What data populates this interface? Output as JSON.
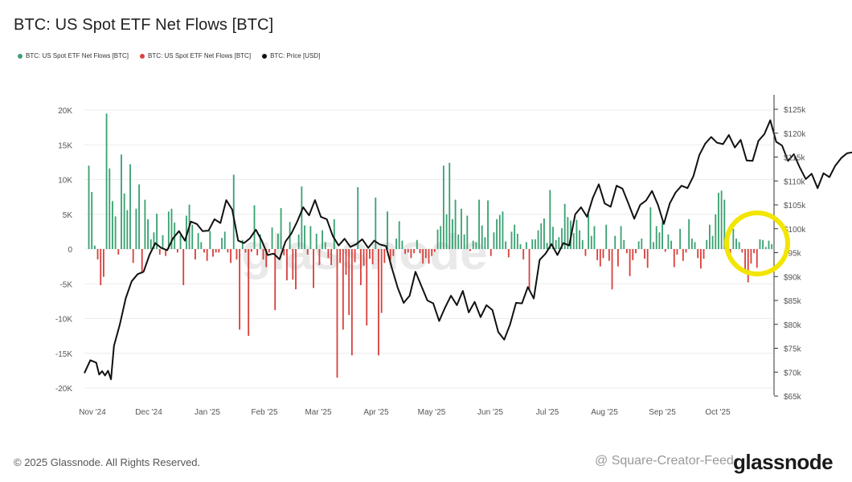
{
  "title": "BTC: US Spot ETF Net Flows [BTC]",
  "legend": [
    {
      "label": "BTC: US Spot ETF Net Flows [BTC]",
      "color": "#3ba272"
    },
    {
      "label": "BTC: US Spot ETF Net Flows [BTC]",
      "color": "#d9423e"
    },
    {
      "label": "BTC: Price [USD]",
      "color": "#111111"
    }
  ],
  "footer": "© 2025 Glassnode. All Rights Reserved.",
  "brand": "glassnode",
  "background_watermark": "glassnode",
  "overlay_watermark": "@ Square-Creator-Feed",
  "colors": {
    "inflow": "#3ba272",
    "outflow": "#d9423e",
    "price": "#111111",
    "highlight": "#f2e500"
  },
  "chart_data": {
    "type": "bar",
    "x_ticks": [
      "Nov '24",
      "Dec '24",
      "Jan '25",
      "Feb '25",
      "Mar '25",
      "Apr '25",
      "May '25",
      "Jun '25",
      "Jul '25",
      "Aug '25",
      "Sep '25",
      "Oct '25"
    ],
    "left_axis": {
      "ticks": [
        "20K",
        "15K",
        "10K",
        "5K",
        "0",
        "-5K",
        "-10K",
        "-15K",
        "-20K"
      ],
      "range": [
        -20000,
        20000
      ]
    },
    "right_axis": {
      "ticks": [
        "$125k",
        "$120k",
        "$115k",
        "$110k",
        "$105k",
        "$100k",
        "$95k",
        "$90k",
        "$85k",
        "$80k",
        "$75k",
        "$70k",
        "$65k"
      ],
      "range": [
        65000,
        125000
      ]
    },
    "flows": [
      0,
      12000,
      8200,
      500,
      -1500,
      -5200,
      -4000,
      19500,
      11600,
      6900,
      4700,
      -800,
      13600,
      8000,
      5600,
      12200,
      -2000,
      5800,
      9300,
      -3500,
      7100,
      4300,
      1400,
      2400,
      5100,
      -800,
      2000,
      -1000,
      5400,
      5800,
      3800,
      -500,
      2000,
      -5200,
      4800,
      6400,
      3500,
      -1500,
      2300,
      1000,
      -500,
      -1700,
      2600,
      -1100,
      -500,
      -500,
      1600,
      2500,
      -500,
      -2000,
      10700,
      -1500,
      -11600,
      1300,
      -500,
      -12500,
      -400,
      6300,
      -900,
      2100,
      -1500,
      -2600,
      -500,
      3100,
      -8800,
      2200,
      5900,
      -900,
      -4500,
      3900,
      -4400,
      -5800,
      2100,
      9000,
      3400,
      -800,
      3300,
      -5600,
      2200,
      -2300,
      2700,
      1000,
      -1300,
      -2300,
      4300,
      -18500,
      -2000,
      -11600,
      -3700,
      -9500,
      -15300,
      -1900,
      8900,
      -5200,
      -2400,
      -11000,
      -1400,
      -2200,
      7400,
      -15300,
      -9200,
      -2000,
      5400,
      -1600,
      -1000,
      1500,
      4000,
      1200,
      -700,
      -500,
      -1300,
      -600,
      1300,
      -600,
      -2100,
      -1300,
      -2100,
      -1000,
      -400,
      2800,
      3300,
      12000,
      5000,
      12400,
      4300,
      7100,
      2100,
      5800,
      2100,
      4800,
      -300,
      1200,
      1000,
      7100,
      3400,
      1700,
      7000,
      -1000,
      2400,
      4300,
      4900,
      5400,
      1100,
      -1200,
      2500,
      3500,
      2200,
      700,
      -1500,
      1000,
      -5800,
      1400,
      1400,
      2700,
      3700,
      4400,
      900,
      8500,
      3200,
      1300,
      1700,
      3000,
      6500,
      4600,
      4100,
      2300,
      4200,
      2700,
      1300,
      -1000,
      5000,
      1900,
      3300,
      -1600,
      -2500,
      -1300,
      3500,
      -1700,
      -5800,
      1900,
      -2500,
      3300,
      1300,
      -600,
      -3900,
      -1600,
      -600,
      1100,
      1500,
      -1400,
      -2700,
      6000,
      1000,
      3300,
      2400,
      3900,
      -400,
      2100,
      1200,
      -2600,
      -800,
      2900,
      -1700,
      -500,
      4300,
      1500,
      1000,
      -1300,
      -2800,
      -1400,
      1300,
      3500,
      1900,
      5000,
      8100,
      8400,
      7100,
      -600,
      -600,
      2900,
      1500,
      1000,
      -500,
      -3000,
      -4800,
      -2100,
      -600,
      -2700,
      1400,
      1300,
      300,
      1200,
      700
    ],
    "price": [
      [
        0,
        69800
      ],
      [
        2,
        72500
      ],
      [
        4,
        72000
      ],
      [
        5,
        69500
      ],
      [
        6,
        70200
      ],
      [
        7,
        69300
      ],
      [
        8,
        70300
      ],
      [
        9,
        68500
      ],
      [
        10,
        75500
      ],
      [
        12,
        80000
      ],
      [
        14,
        85500
      ],
      [
        16,
        89000
      ],
      [
        18,
        90500
      ],
      [
        20,
        91000
      ],
      [
        22,
        94500
      ],
      [
        24,
        97000
      ],
      [
        26,
        96000
      ],
      [
        28,
        95500
      ],
      [
        30,
        98000
      ],
      [
        32,
        99500
      ],
      [
        34,
        97500
      ],
      [
        36,
        101500
      ],
      [
        38,
        101000
      ],
      [
        40,
        99500
      ],
      [
        42,
        99600
      ],
      [
        44,
        102000
      ],
      [
        46,
        101200
      ],
      [
        48,
        106000
      ],
      [
        50,
        104000
      ],
      [
        52,
        97500
      ],
      [
        54,
        97000
      ],
      [
        56,
        98000
      ],
      [
        58,
        99800
      ],
      [
        60,
        97500
      ],
      [
        62,
        94500
      ],
      [
        64,
        94800
      ],
      [
        66,
        93600
      ],
      [
        68,
        97300
      ],
      [
        70,
        99000
      ],
      [
        72,
        101500
      ],
      [
        74,
        104500
      ],
      [
        76,
        102800
      ],
      [
        78,
        106000
      ],
      [
        80,
        102500
      ],
      [
        82,
        102000
      ],
      [
        84,
        98500
      ],
      [
        86,
        96500
      ],
      [
        88,
        97900
      ],
      [
        90,
        96200
      ],
      [
        92,
        96800
      ],
      [
        94,
        97800
      ],
      [
        96,
        96000
      ],
      [
        98,
        97500
      ],
      [
        100,
        96700
      ],
      [
        102,
        96400
      ],
      [
        104,
        91800
      ],
      [
        106,
        87600
      ],
      [
        108,
        84500
      ],
      [
        110,
        86000
      ],
      [
        112,
        91000
      ],
      [
        114,
        88000
      ],
      [
        116,
        85000
      ],
      [
        118,
        84400
      ],
      [
        120,
        80700
      ],
      [
        122,
        83500
      ],
      [
        124,
        86000
      ],
      [
        126,
        84000
      ],
      [
        128,
        87000
      ],
      [
        130,
        82500
      ],
      [
        132,
        84700
      ],
      [
        134,
        81500
      ],
      [
        136,
        84000
      ],
      [
        138,
        83000
      ],
      [
        140,
        78400
      ],
      [
        142,
        76800
      ],
      [
        144,
        80000
      ],
      [
        146,
        84500
      ],
      [
        148,
        84400
      ],
      [
        150,
        87800
      ],
      [
        152,
        85400
      ],
      [
        154,
        93500
      ],
      [
        156,
        94800
      ],
      [
        158,
        96800
      ],
      [
        160,
        94500
      ],
      [
        162,
        97000
      ],
      [
        164,
        96500
      ],
      [
        166,
        103000
      ],
      [
        168,
        104500
      ],
      [
        170,
        102500
      ],
      [
        172,
        106500
      ],
      [
        174,
        109300
      ],
      [
        176,
        105300
      ],
      [
        178,
        104600
      ],
      [
        180,
        109000
      ],
      [
        182,
        108400
      ],
      [
        184,
        105300
      ],
      [
        186,
        102100
      ],
      [
        188,
        105000
      ],
      [
        190,
        105900
      ],
      [
        192,
        107900
      ],
      [
        194,
        105000
      ],
      [
        196,
        101000
      ],
      [
        198,
        105300
      ],
      [
        200,
        107600
      ],
      [
        202,
        109000
      ],
      [
        204,
        108500
      ],
      [
        206,
        111000
      ],
      [
        208,
        115400
      ],
      [
        210,
        117800
      ],
      [
        212,
        119200
      ],
      [
        214,
        118000
      ],
      [
        216,
        117700
      ],
      [
        218,
        119600
      ],
      [
        220,
        117000
      ],
      [
        222,
        118600
      ],
      [
        224,
        114300
      ],
      [
        226,
        114200
      ],
      [
        228,
        118400
      ],
      [
        230,
        119800
      ],
      [
        232,
        122700
      ],
      [
        234,
        118200
      ],
      [
        236,
        117400
      ],
      [
        238,
        114200
      ],
      [
        240,
        115600
      ],
      [
        242,
        112800
      ],
      [
        244,
        110400
      ],
      [
        246,
        111500
      ],
      [
        248,
        108500
      ],
      [
        250,
        111600
      ],
      [
        252,
        110800
      ],
      [
        254,
        113200
      ],
      [
        256,
        114800
      ],
      [
        258,
        115800
      ],
      [
        260,
        116000
      ],
      [
        262,
        114300
      ],
      [
        264,
        110600
      ],
      [
        266,
        111700
      ],
      [
        268,
        114800
      ],
      [
        270,
        119100
      ],
      [
        272,
        122300
      ],
      [
        274,
        124700
      ],
      [
        275,
        123200
      ],
      [
        276,
        121600
      ],
      [
        278,
        114000
      ],
      [
        280,
        110800
      ],
      [
        282,
        113000
      ],
      [
        284,
        108300
      ],
      [
        286,
        107100
      ],
      [
        288,
        110800
      ],
      [
        290,
        111500
      ],
      [
        292,
        114500
      ],
      [
        293,
        113000
      ],
      [
        294,
        112500
      ]
    ],
    "highlight": "circle around late-October flows"
  }
}
